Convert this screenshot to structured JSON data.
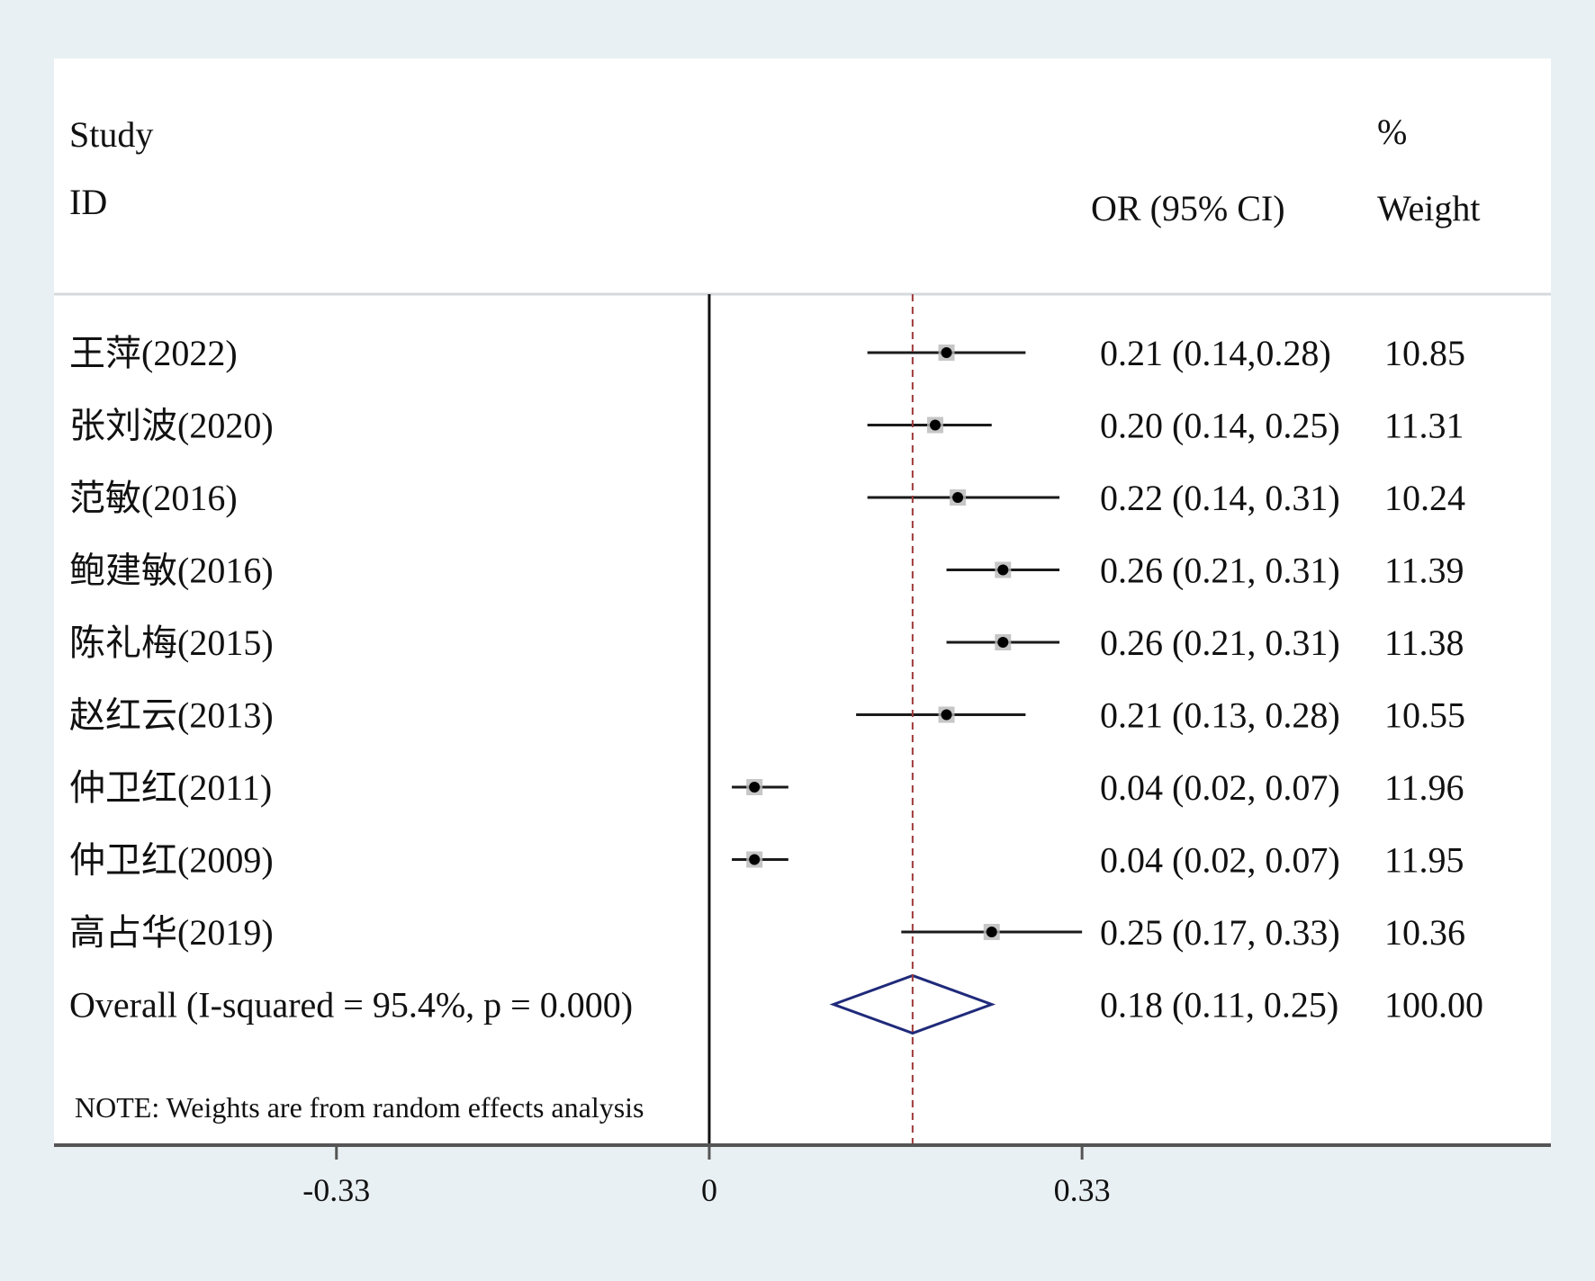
{
  "chart_data": {
    "type": "forest",
    "headers": {
      "study_line1": "Study",
      "study_line2": "ID",
      "effect": "OR (95% CI)",
      "weight_line1": "%",
      "weight_line2": "Weight"
    },
    "studies": [
      {
        "label": "王萍(2022)",
        "or": 0.21,
        "lo": 0.14,
        "hi": 0.28,
        "ci_text": "0.21 (0.14,0.28)",
        "weight": "10.85"
      },
      {
        "label": "张刘波(2020)",
        "or": 0.2,
        "lo": 0.14,
        "hi": 0.25,
        "ci_text": "0.20 (0.14, 0.25)",
        "weight": "11.31"
      },
      {
        "label": "范敏(2016)",
        "or": 0.22,
        "lo": 0.14,
        "hi": 0.31,
        "ci_text": "0.22 (0.14, 0.31)",
        "weight": "10.24"
      },
      {
        "label": "鲍建敏(2016)",
        "or": 0.26,
        "lo": 0.21,
        "hi": 0.31,
        "ci_text": "0.26 (0.21, 0.31)",
        "weight": "11.39"
      },
      {
        "label": "陈礼梅(2015)",
        "or": 0.26,
        "lo": 0.21,
        "hi": 0.31,
        "ci_text": "0.26 (0.21, 0.31)",
        "weight": "11.38"
      },
      {
        "label": "赵红云(2013)",
        "or": 0.21,
        "lo": 0.13,
        "hi": 0.28,
        "ci_text": "0.21 (0.13, 0.28)",
        "weight": "10.55"
      },
      {
        "label": "仲卫红(2011)",
        "or": 0.04,
        "lo": 0.02,
        "hi": 0.07,
        "ci_text": "0.04 (0.02, 0.07)",
        "weight": "11.96"
      },
      {
        "label": "仲卫红(2009)",
        "or": 0.04,
        "lo": 0.02,
        "hi": 0.07,
        "ci_text": "0.04 (0.02, 0.07)",
        "weight": "11.95"
      },
      {
        "label": "高占华(2019)",
        "or": 0.25,
        "lo": 0.17,
        "hi": 0.33,
        "ci_text": "0.25 (0.17, 0.33)",
        "weight": "10.36"
      }
    ],
    "overall": {
      "label": "Overall (I-squared = 95.4%, p = 0.000)",
      "or": 0.18,
      "lo": 0.11,
      "hi": 0.25,
      "ci_text": "0.18 (0.11, 0.25)",
      "weight": "100.00"
    },
    "note": "NOTE: Weights are from random effects analysis",
    "x_ticks": [
      {
        "value": -0.33,
        "label": "-0.33"
      },
      {
        "value": 0,
        "label": "0"
      },
      {
        "value": 0.33,
        "label": "0.33"
      }
    ],
    "xlim": [
      -0.58,
      0.745
    ],
    "null_line": 0,
    "pooled_line": 0.18,
    "colors": {
      "background": "#e9f0f3",
      "panel": "#ffffff",
      "point": "#000000",
      "ci_line": "#1a1a1a",
      "diamond": "#1f2a7a",
      "pooled_line": "#a03a3a",
      "axis": "#555555"
    }
  }
}
